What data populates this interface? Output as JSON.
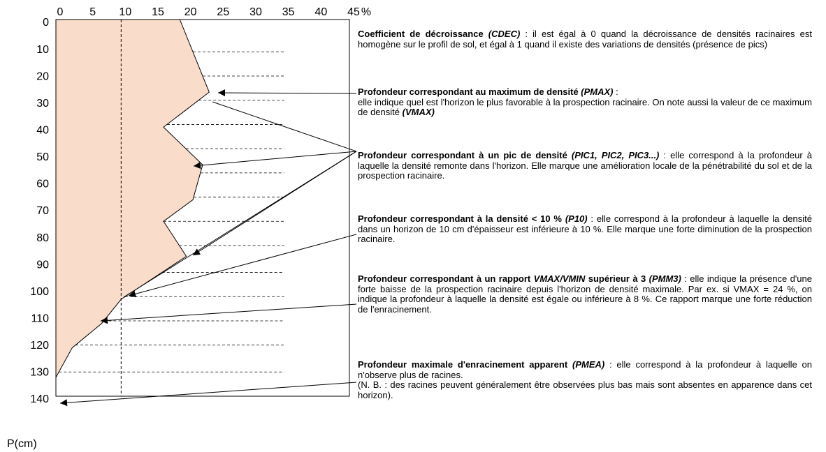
{
  "chart_data": {
    "type": "profile",
    "ylabel": "P(cm)",
    "xunit": "%",
    "xlim": [
      0,
      45
    ],
    "xticks": [
      0,
      5,
      10,
      15,
      20,
      25,
      30,
      35,
      40,
      45
    ],
    "ylim": [
      0,
      140
    ],
    "yticks": [
      0,
      10,
      20,
      30,
      40,
      50,
      60,
      70,
      80,
      90,
      100,
      110,
      120,
      130,
      140
    ],
    "depths": [
      0,
      27,
      40,
      54,
      67,
      75,
      88,
      104,
      113,
      122,
      133
    ],
    "values": [
      19,
      23.5,
      16.5,
      22.5,
      21,
      16.5,
      20,
      10,
      7,
      2.5,
      0
    ],
    "fill": "#f9dcc9",
    "color": "#000000",
    "threshold": 10,
    "horizons": [
      12,
      21,
      30,
      39,
      48,
      57,
      66,
      75,
      84,
      94,
      103,
      112,
      121,
      131
    ],
    "horizon_xmax": 35,
    "annotations": [
      [
        {
          "b": "Coefficient de décroissance "
        },
        {
          "bi": "(CDEC)"
        },
        {
          "t": " : il est égal à 0 quand la décroissance de densités racinaires est homogène sur le profil de sol, et égal à 1 quand il existe des variations de densités (présence de pics)"
        }
      ],
      [
        {
          "b": "Profondeur correspondant au maximum de densité "
        },
        {
          "bi": "(PMAX)"
        },
        {
          "t": " :"
        },
        {
          "br": ""
        },
        {
          "t": "elle indique quel est l'horizon le plus favorable à la prospection racinaire. On note aussi la valeur de ce maximum de densité "
        },
        {
          "bi": "(VMAX)"
        }
      ],
      [
        {
          "b": "Profondeur correspondant à un pic de densité "
        },
        {
          "bi": "(PIC1, PIC2, PIC3...)"
        },
        {
          "t": " : elle correspond à la profondeur à laquelle la densité remonte dans l'horizon. Elle marque une amélioration locale de la pénétrabilité du sol et de la prospection racinaire."
        }
      ],
      [
        {
          "b": "Profondeur correspondant à la densité < 10 % "
        },
        {
          "bi": "(P10)"
        },
        {
          "t": " : elle correspond à la profondeur à laquelle la densité dans un horizon de 10 cm d'épaisseur est inférieure à 10 %. Elle marque une forte diminution de la prospection racinaire."
        }
      ],
      [
        {
          "b": "Profondeur correspondant à un rapport "
        },
        {
          "bi": "VMAX/VMIN"
        },
        {
          "b": " supérieur à 3 "
        },
        {
          "bi": "(PMM3)"
        },
        {
          "t": " : elle indique la présence d'une forte baisse de la prospection racinaire depuis l'horizon de densité maximale. Par ex. si VMAX = 24 %, on indique la profondeur à laquelle la densité est égale ou inférieure à 8 %. Ce rapport marque une forte réduction de l'enracinement."
        }
      ],
      [
        {
          "b": "Profondeur maximale d'enracinement apparent "
        },
        {
          "bi": "(PMEA)"
        },
        {
          "t": " : elle correspond à la profondeur à laquelle on n'observe plus de racines."
        },
        {
          "br": ""
        },
        {
          "t": "(N. B. : des racines peuvent généralement être observées plus bas mais sont absentes en apparence dans cet horizon)."
        }
      ]
    ]
  }
}
